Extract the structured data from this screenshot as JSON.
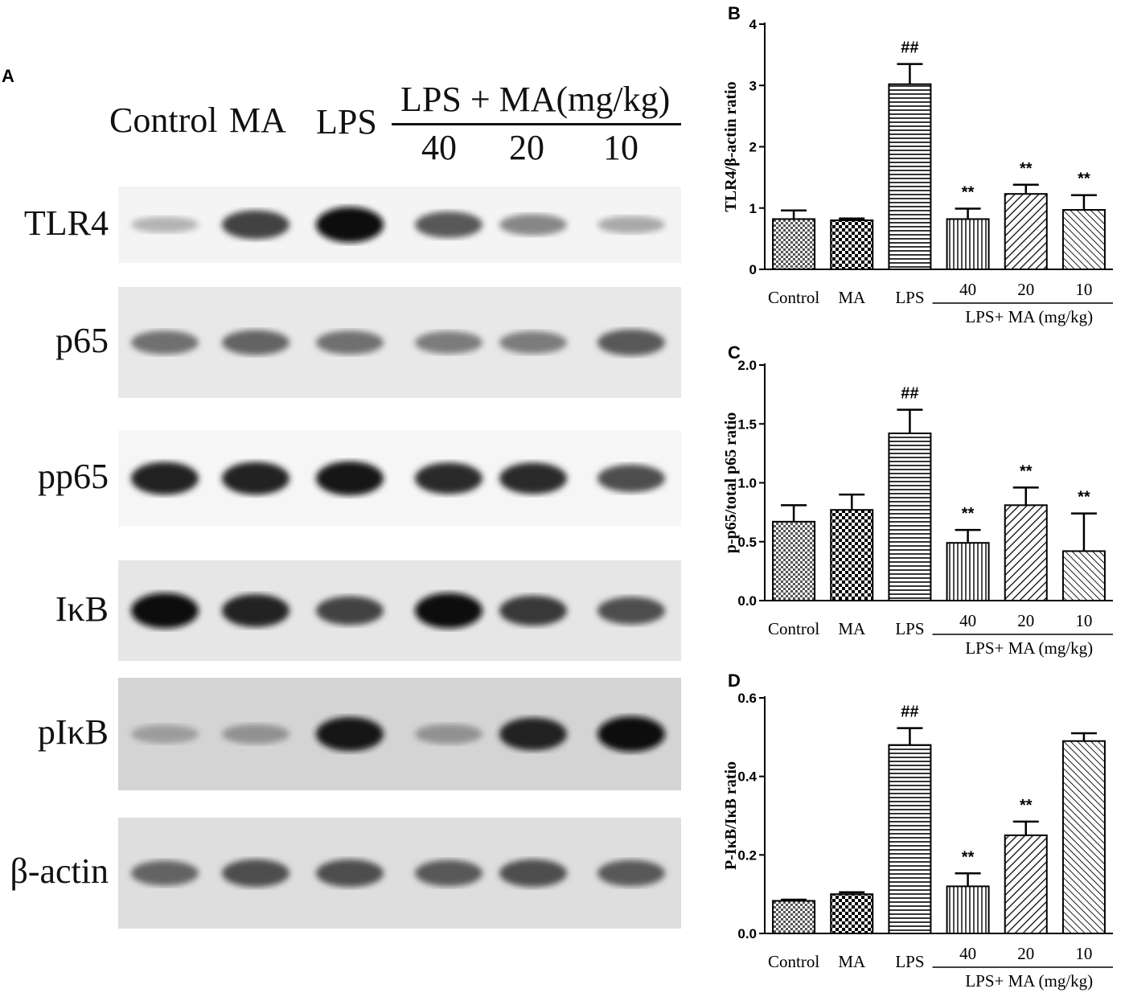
{
  "panel_letters": {
    "a": "A",
    "b": "B",
    "c": "C",
    "d": "D"
  },
  "western_blot": {
    "lane_headers": [
      "Control",
      "MA",
      "LPS"
    ],
    "group_header": "LPS + MA(mg/kg)",
    "doses": [
      "40",
      "20",
      "10"
    ],
    "rows": [
      {
        "label": "TLR4",
        "intensities": [
          0.25,
          0.75,
          1.0,
          0.65,
          0.45,
          0.3
        ],
        "background": "#f4f4f4"
      },
      {
        "label": "p65",
        "intensities": [
          0.55,
          0.6,
          0.55,
          0.5,
          0.5,
          0.65
        ],
        "background": "#e8e8e8"
      },
      {
        "label": "pp65",
        "intensities": [
          0.9,
          0.9,
          0.95,
          0.85,
          0.85,
          0.7
        ],
        "background": "#f6f6f6"
      },
      {
        "label": "IκB",
        "intensities": [
          1.0,
          0.9,
          0.75,
          1.0,
          0.8,
          0.7
        ],
        "background": "#e6e6e6"
      },
      {
        "label": "pIκB",
        "intensities": [
          0.35,
          0.4,
          0.95,
          0.4,
          0.9,
          1.0
        ],
        "background": "#d4d4d4"
      },
      {
        "label": "β-actin",
        "intensities": [
          0.6,
          0.7,
          0.7,
          0.65,
          0.7,
          0.65
        ],
        "background": "#dedede"
      }
    ]
  },
  "chart_data": [
    {
      "panel": "B",
      "type": "bar",
      "categories": [
        "Control",
        "MA",
        "LPS",
        "40",
        "20",
        "10"
      ],
      "group_label": "LPS+ MA (mg/kg)",
      "values": [
        0.82,
        0.8,
        3.02,
        0.82,
        1.23,
        0.97
      ],
      "errors": [
        0.14,
        0.03,
        0.33,
        0.17,
        0.15,
        0.24
      ],
      "annotations": [
        "",
        "",
        "##",
        "**",
        "**",
        "**"
      ],
      "patterns": [
        "check",
        "checker",
        "hlines",
        "vlines",
        "diag",
        "diagdense"
      ],
      "ylabel": "TLR4/β-actin ratio",
      "ylim": [
        0,
        4
      ],
      "yticks": [
        "0",
        "1",
        "2",
        "3",
        "4"
      ]
    },
    {
      "panel": "C",
      "type": "bar",
      "categories": [
        "Control",
        "MA",
        "LPS",
        "40",
        "20",
        "10"
      ],
      "group_label": "LPS+ MA (mg/kg)",
      "values": [
        0.67,
        0.77,
        1.42,
        0.49,
        0.81,
        0.42
      ],
      "errors": [
        0.14,
        0.13,
        0.2,
        0.11,
        0.15,
        0.32
      ],
      "annotations": [
        "",
        "",
        "##",
        "**",
        "**",
        "**"
      ],
      "patterns": [
        "check",
        "checker",
        "hlines",
        "vlines",
        "diag",
        "diagdense"
      ],
      "ylabel": "p-p65/total p65 ratio",
      "ylim": [
        0,
        2.0
      ],
      "yticks": [
        "0.0",
        "0.5",
        "1.0",
        "1.5",
        "2.0"
      ]
    },
    {
      "panel": "D",
      "type": "bar",
      "categories": [
        "Control",
        "MA",
        "LPS",
        "40",
        "20",
        "10"
      ],
      "group_label": "LPS+ MA (mg/kg)",
      "values": [
        0.083,
        0.1,
        0.48,
        0.12,
        0.25,
        0.49
      ],
      "errors": [
        0.003,
        0.005,
        0.043,
        0.033,
        0.035,
        0.02
      ],
      "annotations": [
        "",
        "",
        "##",
        "**",
        "**",
        ""
      ],
      "patterns": [
        "check",
        "checker",
        "hlines",
        "vlines",
        "diag",
        "diagdense"
      ],
      "ylabel": "P-IκB/IκB ratio",
      "ylim": [
        0,
        0.6
      ],
      "yticks": [
        "0.0",
        "0.2",
        "0.4",
        "0.6"
      ]
    }
  ]
}
